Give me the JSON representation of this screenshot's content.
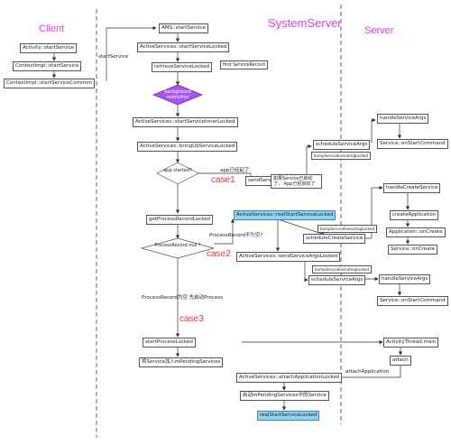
{
  "lanes": {
    "client": "Client",
    "system": "SystemServer",
    "server": "Server"
  },
  "client": {
    "activity_start": "Activity::startService",
    "contextimpl_start": "ContextImpl::startService",
    "contextimpl_common": "ContextImpl::startServiceCommon",
    "edge_startservice": "startService"
  },
  "system": {
    "ams_start": "AMS::startService",
    "as_start_locked": "ActiveServices::startServiceLocked",
    "retrieve_locked": "retrieveServiceLocked",
    "find_record": "find ServiceRecord",
    "bg_restriction": "background restriction",
    "start_inner_locked": "ActiveServices::startServiceInnerLocked",
    "bringup_locked": "ActiveServices::bringUpServiceLocked",
    "app_started": "app started?",
    "app_started_label": "app已经起了",
    "no_label": "no",
    "send_args_locked": "sendServiceArgsLocked",
    "note_already_started": "如果Service已启动了， App已经启动了",
    "get_process_locked": "getProcessRecordLocked",
    "real_start_locked": "ActiveServices::realStartServiceLocked",
    "process_null": "ProcessRecord null ?",
    "process_not_null": "ProcessRecord不为空?",
    "send_args_locked_full": "ActiveServices::sendServiceArgsLocked",
    "process_null_text": "ProcessRecord为空 先启动Process",
    "start_process_locked": "startProcessLocked",
    "add_pending": "将Service加入mPendingServices",
    "attach_app_locked": "ActiveServices::attachApplicationLocked",
    "start_pending": "启动mPendingServices中的Service",
    "real_start_final": "realStartServiceLocked",
    "case1": "case1",
    "case2": "case2",
    "case3": "case3"
  },
  "server": {
    "bump1": "bumpServiceExecutingLocked",
    "schedule_args_1": "scheduleServiceArgs",
    "handle_args_1": "handleServiceArgs",
    "on_start_cmd_1": "Service::onStartCommand",
    "handle_create": "handleCreateService",
    "bump2": "bumpServiceExecutingLocked",
    "schedule_create": "scheduleCreateService",
    "create_app": "createApplication",
    "app_on_create": "Application::onCreate",
    "service_on_create": "Service::onCreate",
    "bump3": "bumpServiceExecutingLocked",
    "schedule_args_2": "scheduleServiceArgs",
    "handle_args_2": "handleServiceArgs",
    "on_start_cmd_2": "Service::onStartCommand",
    "activity_thread_main": "ActivityThread.main",
    "attach": "attach",
    "attach_application": "attachApplication"
  },
  "colors": {
    "lane_label": "#e040fb",
    "case_label": "#e53935",
    "highlight": "#8fd3f4",
    "diamond": "#a855f7"
  }
}
